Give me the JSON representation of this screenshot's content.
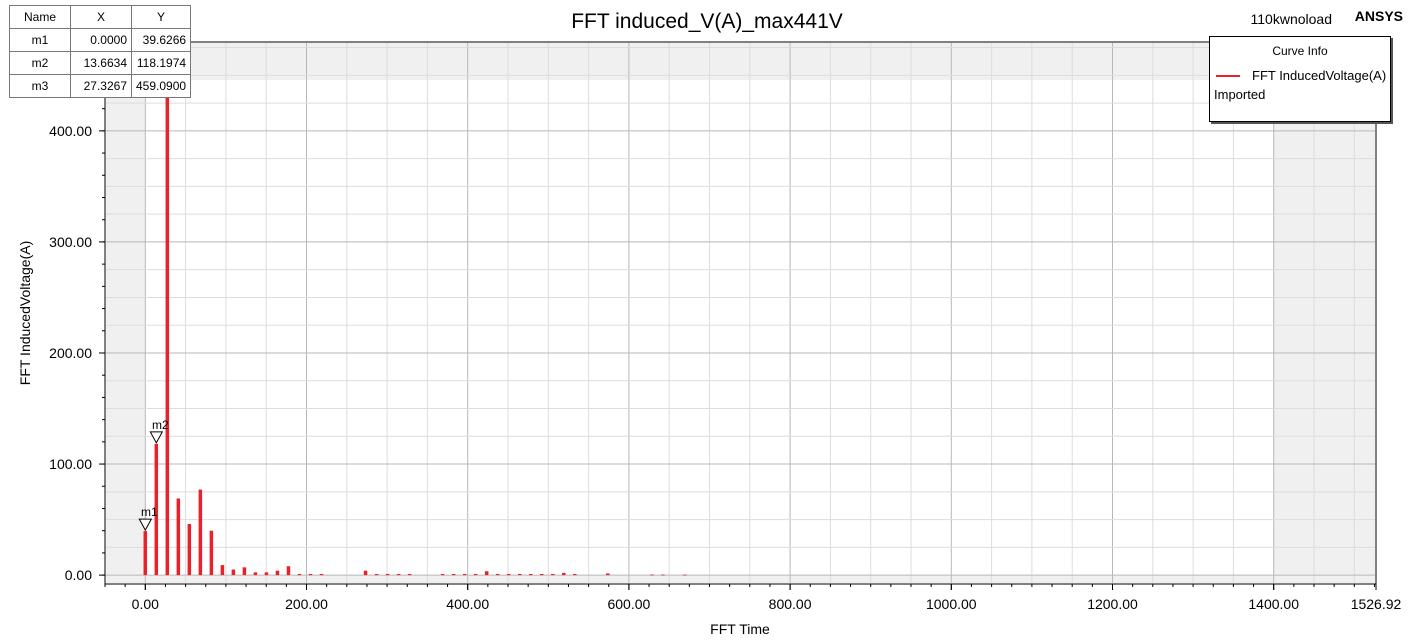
{
  "header": {
    "design_name": "110kwnoload",
    "brand": "ANSYS"
  },
  "marker_table": {
    "columns": [
      "Name",
      "X",
      "Y"
    ],
    "rows": [
      {
        "name": "m1",
        "x": "0.0000",
        "y": "39.6266"
      },
      {
        "name": "m2",
        "x": "13.6634",
        "y": "118.1974"
      },
      {
        "name": "m3",
        "x": "27.3267",
        "y": "459.0900"
      }
    ]
  },
  "legend": {
    "title": "Curve Info",
    "entries": [
      {
        "label": "FFT InducedVoltage(A)",
        "source": "Imported",
        "color": "#e8212b"
      }
    ]
  },
  "colors": {
    "series": "#e8212b",
    "plot_background": "#f0f0f0",
    "grid": "#c8c8c8"
  },
  "chart_data": {
    "type": "bar",
    "title": "FFT induced_V(A)_max441V",
    "xlabel": "FFT Time",
    "ylabel": "FFT InducedVoltage(A)",
    "xlim": [
      -50,
      1526.92
    ],
    "ylim": [
      -8,
      480
    ],
    "x_ticks": [
      0,
      200,
      400,
      600,
      800,
      1000,
      1200,
      1400,
      1526.92
    ],
    "x_tick_labels": [
      "0.00",
      "200.00",
      "400.00",
      "600.00",
      "800.00",
      "1000.00",
      "1200.00",
      "1400.00",
      "1526.92"
    ],
    "y_ticks": [
      0,
      100,
      200,
      300,
      400
    ],
    "y_tick_labels": [
      "0.00",
      "100.00",
      "200.00",
      "300.00",
      "400.00"
    ],
    "grid": true,
    "legend_position": "top-right",
    "series": [
      {
        "name": "FFT InducedVoltage(A)",
        "x": [
          0.0,
          13.66,
          27.33,
          40.99,
          54.65,
          68.32,
          81.98,
          95.64,
          109.31,
          122.97,
          136.63,
          150.3,
          163.96,
          177.62,
          191.29,
          204.95,
          218.61,
          273.27,
          286.93,
          300.59,
          314.26,
          327.92,
          368.91,
          382.57,
          396.24,
          409.9,
          423.56,
          437.23,
          450.89,
          464.55,
          478.22,
          491.88,
          505.54,
          519.21,
          532.87,
          573.86,
          628.51,
          642.18,
          669.5
        ],
        "values": [
          39.6266,
          118.1974,
          459.09,
          69,
          46,
          77,
          40,
          9,
          5,
          7,
          2.5,
          2.5,
          4,
          8,
          1,
          1,
          1,
          4,
          1,
          1,
          1,
          1,
          1,
          1,
          1,
          1,
          3.5,
          1,
          1,
          1,
          1,
          1,
          1,
          2,
          1,
          1.5,
          0.5,
          0.5,
          0.5
        ]
      }
    ],
    "markers": [
      {
        "name": "m1",
        "x": 0.0,
        "y": 39.6266
      },
      {
        "name": "m2",
        "x": 13.6634,
        "y": 118.1974
      },
      {
        "name": "m3",
        "x": 27.3267,
        "y": 459.09
      }
    ]
  }
}
